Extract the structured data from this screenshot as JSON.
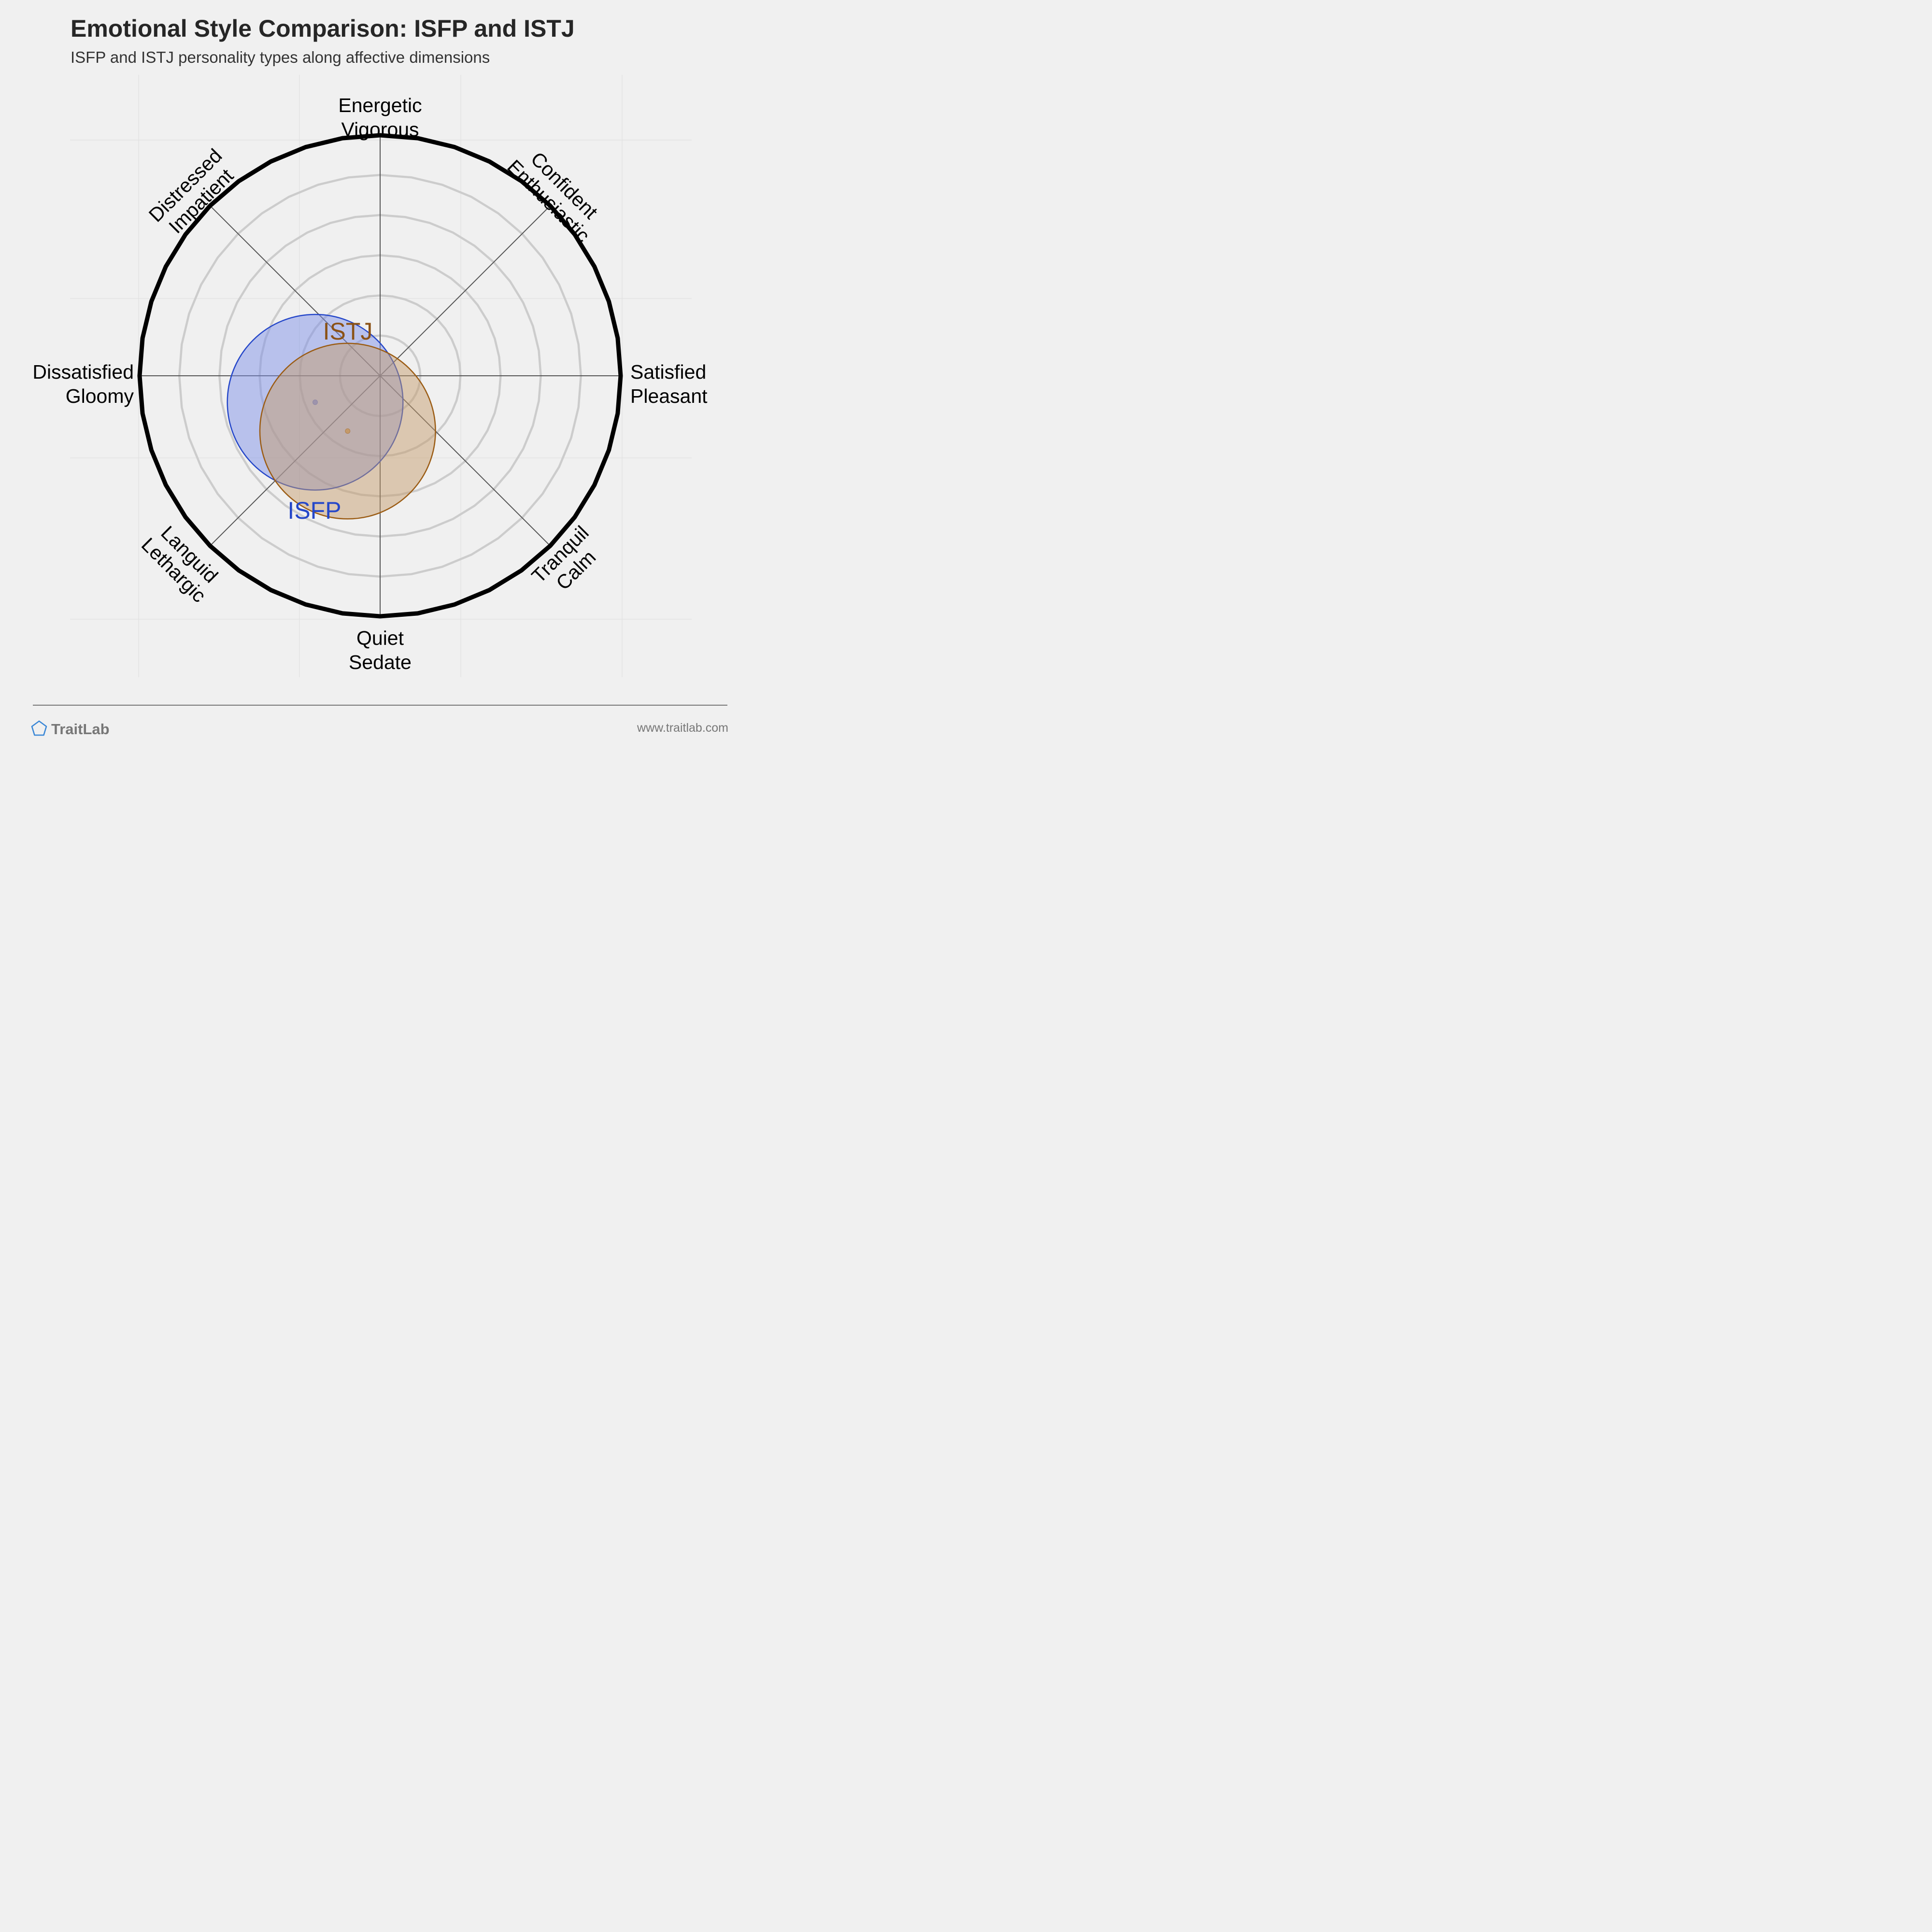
{
  "header": {
    "title": "Emotional Style Comparison: ISFP and ISTJ",
    "subtitle": "ISFP and ISTJ personality types along affective dimensions"
  },
  "chart_data": {
    "type": "circumplex",
    "title": "Emotional Style Comparison: ISFP and ISTJ",
    "subtitle": "ISFP and ISTJ personality types along affective dimensions",
    "x_axis": {
      "negative": [
        "Dissatisfied",
        "Gloomy"
      ],
      "positive": [
        "Satisfied",
        "Pleasant"
      ],
      "range": [
        -1,
        1
      ]
    },
    "y_axis": {
      "negative": [
        "Quiet",
        "Sedate"
      ],
      "positive": [
        "Energetic",
        "Vigorous"
      ],
      "range": [
        -1,
        1
      ]
    },
    "axis_labels": [
      {
        "id": "energetic",
        "lines": [
          "Energetic",
          "Vigorous"
        ]
      },
      {
        "id": "confident",
        "lines": [
          "Confident",
          "Enthusiastic"
        ]
      },
      {
        "id": "satisfied",
        "lines": [
          "Satisfied",
          "Pleasant"
        ]
      },
      {
        "id": "tranquil",
        "lines": [
          "Tranquil",
          "Calm"
        ]
      },
      {
        "id": "quiet",
        "lines": [
          "Quiet",
          "Sedate"
        ]
      },
      {
        "id": "languid",
        "lines": [
          "Languid",
          "Lethargic"
        ]
      },
      {
        "id": "dissatisfied",
        "lines": [
          "Dissatisfied",
          "Gloomy"
        ]
      },
      {
        "id": "distressed",
        "lines": [
          "Distressed",
          "Impatient"
        ]
      }
    ],
    "rings": 6,
    "grid": true,
    "series": [
      {
        "name": "ISFP",
        "x": -0.27,
        "y": -0.11,
        "spread": 0.365,
        "color": "#2547c9",
        "fill": "#7b8fe8",
        "label_color": "#2547c9"
      },
      {
        "name": "ISTJ",
        "x": -0.135,
        "y": -0.23,
        "spread": 0.365,
        "color": "#9b5c14",
        "fill": "#c49a6a",
        "label_color": "#8b5216"
      }
    ]
  },
  "footer": {
    "brand": "TraitLab",
    "website": "www.traitlab.com",
    "logo_icon": "pentagon-icon"
  }
}
